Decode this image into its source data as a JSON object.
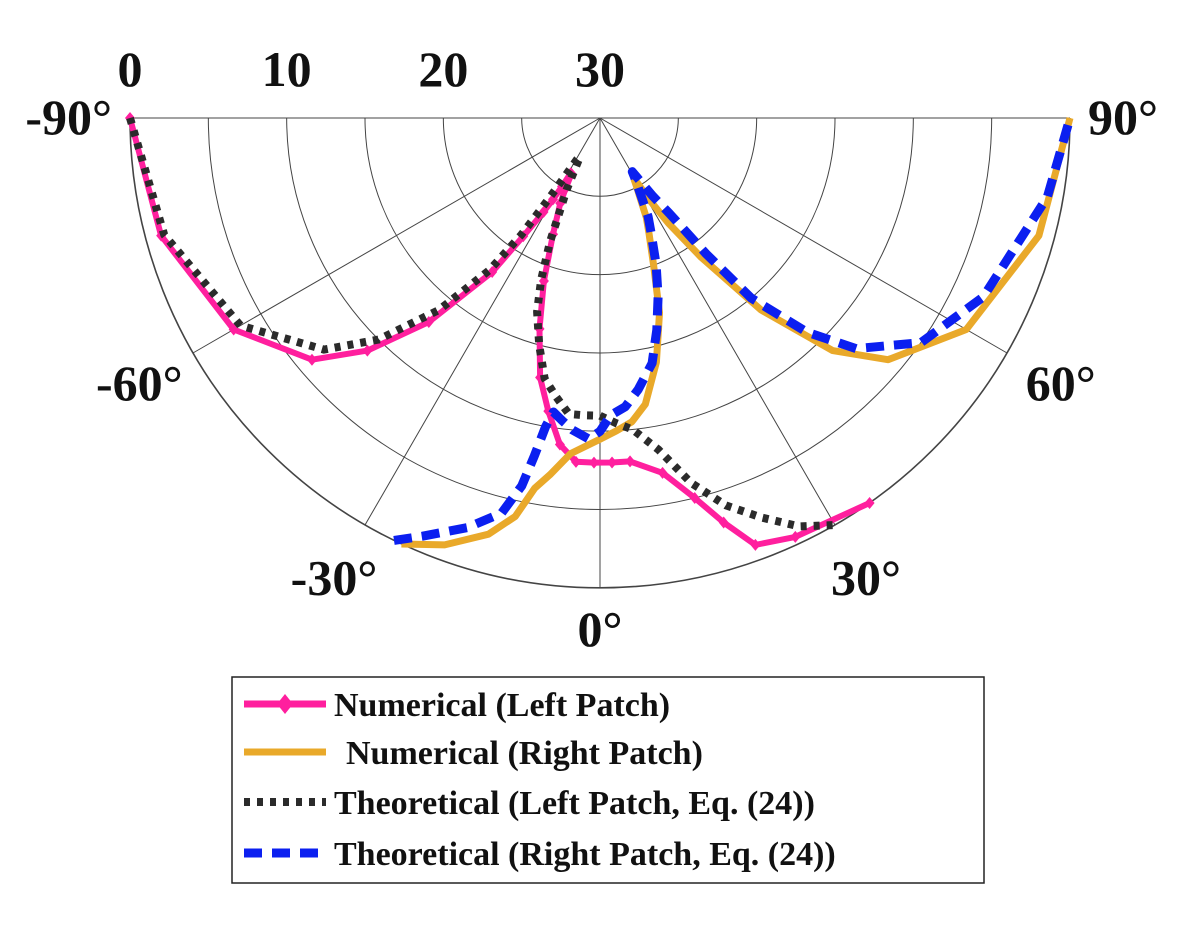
{
  "chart_data": {
    "type": "polar-line",
    "theta_range_deg": [
      -90,
      90
    ],
    "theta_zero": "bottom",
    "r_range": [
      30,
      0
    ],
    "r_direction": "reversed (0 at edge, 30 at center)",
    "r_ticks": [
      30,
      20,
      10,
      0
    ],
    "r_tick_labels": [
      "30",
      "20",
      "10",
      "0"
    ],
    "theta_ticks": [
      -90,
      -60,
      -30,
      0,
      30,
      60,
      90
    ],
    "theta_tick_labels": [
      "-90°",
      "-60°",
      "-30°",
      "0°",
      "30°",
      "60°",
      "90°"
    ],
    "grid": true,
    "legend_position": "bottom",
    "series": [
      {
        "name": "Numerical (Left Patch)",
        "color": "#ff1f9e",
        "style": "solid-diamond-markers",
        "points": [
          [
            -90,
            0
          ],
          [
            -75,
            1
          ],
          [
            -60,
            3
          ],
          [
            -50,
            6
          ],
          [
            -45,
            9
          ],
          [
            -40,
            13
          ],
          [
            -35,
            18
          ],
          [
            -33,
            21
          ],
          [
            -31,
            23
          ],
          [
            -30,
            24
          ],
          [
            -29,
            25
          ],
          [
            -28,
            26
          ],
          [
            -27,
            26
          ],
          [
            -26,
            25
          ],
          [
            -25,
            24
          ],
          [
            -22,
            22
          ],
          [
            -19,
            19
          ],
          [
            -16,
            16
          ],
          [
            -13,
            13
          ],
          [
            -10,
            11
          ],
          [
            -7,
            9
          ],
          [
            -4,
            8
          ],
          [
            -1,
            8
          ],
          [
            2,
            8
          ],
          [
            5,
            8
          ],
          [
            10,
            7
          ],
          [
            14,
            5
          ],
          [
            17,
            3
          ],
          [
            20,
            1
          ],
          [
            25,
            0.5
          ],
          [
            35,
            0
          ]
        ]
      },
      {
        "name": "Numerical (Right Patch)",
        "color": "#e9a92a",
        "style": "solid",
        "points": [
          [
            -25,
            0
          ],
          [
            -20,
            1
          ],
          [
            -15,
            2.5
          ],
          [
            -12,
            4
          ],
          [
            -10,
            6
          ],
          [
            -8,
            7
          ],
          [
            -5,
            8.5
          ],
          [
            0,
            9.5
          ],
          [
            3,
            10
          ],
          [
            6,
            10.5
          ],
          [
            9,
            11.5
          ],
          [
            13,
            14
          ],
          [
            17,
            17
          ],
          [
            20,
            20
          ],
          [
            23,
            22
          ],
          [
            25,
            23
          ],
          [
            27,
            24.5
          ],
          [
            28,
            25
          ],
          [
            29,
            25.5
          ],
          [
            30,
            25.2
          ],
          [
            31,
            24
          ],
          [
            33,
            22
          ],
          [
            36,
            19
          ],
          [
            40,
            14
          ],
          [
            45,
            9
          ],
          [
            50,
            6
          ],
          [
            60,
            3
          ],
          [
            75,
            1
          ],
          [
            90,
            0
          ]
        ]
      },
      {
        "name": "Theoretical (Left Patch, Eq. (24))",
        "color": "#2b2b2b",
        "style": "dotted",
        "points": [
          [
            -90,
            0
          ],
          [
            -75,
            1.2
          ],
          [
            -60,
            3.5
          ],
          [
            -50,
            7
          ],
          [
            -45,
            10
          ],
          [
            -40,
            14
          ],
          [
            -36,
            18
          ],
          [
            -34,
            21
          ],
          [
            -33,
            23
          ],
          [
            -32,
            24.5
          ],
          [
            -30,
            26.5
          ],
          [
            -29,
            27
          ],
          [
            -28,
            27.2
          ],
          [
            -27,
            27
          ],
          [
            -25,
            25
          ],
          [
            -22,
            21.5
          ],
          [
            -20,
            19
          ],
          [
            -18,
            17
          ],
          [
            -15,
            15
          ],
          [
            -12,
            13
          ],
          [
            -9,
            12
          ],
          [
            -6,
            11
          ],
          [
            -3,
            11
          ],
          [
            0,
            11
          ],
          [
            3,
            10.5
          ],
          [
            6,
            10
          ],
          [
            10,
            8.5
          ],
          [
            14,
            6
          ],
          [
            18,
            4
          ],
          [
            22,
            2.5
          ],
          [
            26,
            1
          ],
          [
            30,
            0
          ]
        ]
      },
      {
        "name": "Theoretical (Right Patch, Eq. (24))",
        "color": "#0b1ff0",
        "style": "dashed",
        "points": [
          [
            -26,
            0
          ],
          [
            -23,
            1
          ],
          [
            -18,
            2.5
          ],
          [
            -14,
            4
          ],
          [
            -12,
            6
          ],
          [
            -11,
            8
          ],
          [
            -10,
            10
          ],
          [
            -9,
            11
          ],
          [
            -7,
            10.5
          ],
          [
            -5,
            10
          ],
          [
            -2,
            9.5
          ],
          [
            0,
            10
          ],
          [
            2,
            11
          ],
          [
            5,
            11.5
          ],
          [
            8,
            12.5
          ],
          [
            12,
            14
          ],
          [
            15,
            16
          ],
          [
            18,
            18
          ],
          [
            21,
            20
          ],
          [
            24,
            22
          ],
          [
            26,
            23
          ],
          [
            28,
            24.5
          ],
          [
            30,
            25.5
          ],
          [
            31,
            26
          ],
          [
            32,
            25.5
          ],
          [
            34,
            24
          ],
          [
            36,
            22.5
          ],
          [
            38,
            19
          ],
          [
            40,
            15
          ],
          [
            44,
            11
          ],
          [
            48,
            8
          ],
          [
            55,
            5
          ],
          [
            65,
            3
          ],
          [
            80,
            1
          ],
          [
            90,
            0
          ]
        ]
      }
    ]
  }
}
